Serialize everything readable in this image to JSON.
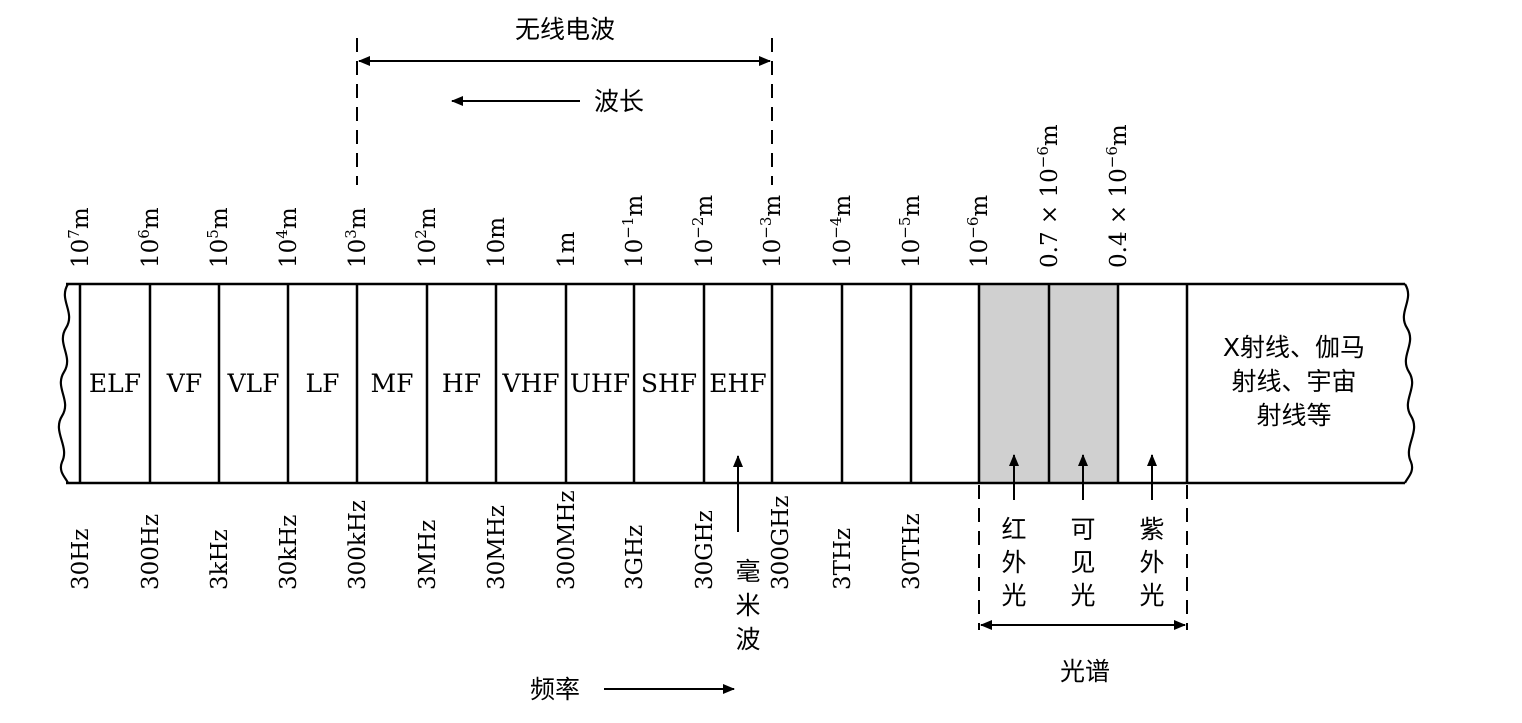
{
  "radio_wave": {
    "title": "无线电波",
    "wavelength_label": "波长"
  },
  "frequency_label": "频率",
  "spectrum_label": "光谱",
  "millimeter_wave": [
    "毫",
    "米",
    "波"
  ],
  "bands": [
    "ELF",
    "VF",
    "VLF",
    "LF",
    "MF",
    "HF",
    "VHF",
    "UHF",
    "SHF",
    "EHF"
  ],
  "wavelength_ticks": [
    "10^7m",
    "10^6m",
    "10^5m",
    "10^4m",
    "10^3m",
    "10^2m",
    "10m",
    "1m",
    "10^-1m",
    "10^-2m",
    "10^-3m",
    "10^-4m",
    "10^-5m",
    "10^-6m",
    "0.7 × 10^-6m",
    "0.4 × 10^-6m"
  ],
  "frequency_ticks": [
    "30Hz",
    "300Hz",
    "3kHz",
    "30kHz",
    "300kHz",
    "3MHz",
    "30MHz",
    "300MHz",
    "3GHz",
    "30GHz",
    "300GHz",
    "3THz",
    "30THz"
  ],
  "light": {
    "infrared": [
      "红",
      "外",
      "光"
    ],
    "visible": [
      "可",
      "见",
      "光"
    ],
    "ultraviolet": [
      "紫",
      "外",
      "光"
    ]
  },
  "high_energy": [
    "X射线、伽马",
    "射线、宇宙",
    "射线等"
  ],
  "colors": {
    "shade": "#d0d0d0",
    "line": "#000000"
  }
}
